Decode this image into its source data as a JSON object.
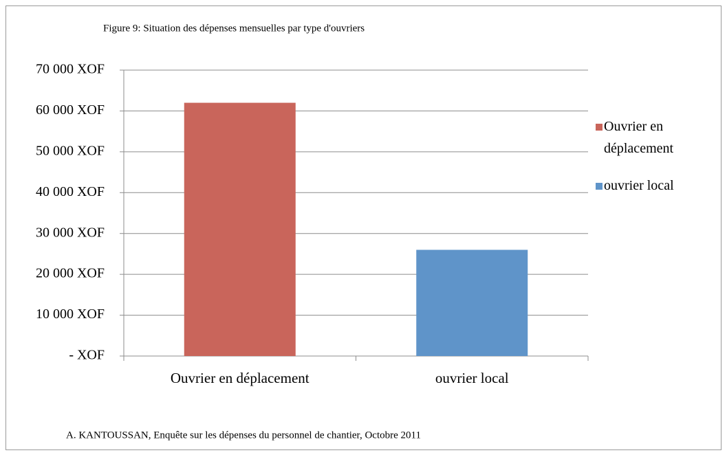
{
  "chart_data": {
    "type": "bar",
    "title": "Figure 9: Situation des dépenses mensuelles par type d'ouvriers",
    "categories": [
      "Ouvrier en déplacement",
      "ouvrier local"
    ],
    "values": [
      62000,
      26000
    ],
    "colors": [
      "#c9655b",
      "#5f94c9"
    ],
    "ylim": [
      0,
      70000
    ],
    "yticks": [
      {
        "value": 0,
        "label": "- XOF"
      },
      {
        "value": 10000,
        "label": "10 000 XOF"
      },
      {
        "value": 20000,
        "label": "20 000 XOF"
      },
      {
        "value": 30000,
        "label": "30 000 XOF"
      },
      {
        "value": 40000,
        "label": "40 000 XOF"
      },
      {
        "value": 50000,
        "label": "50 000 XOF"
      },
      {
        "value": 60000,
        "label": "60 000 XOF"
      },
      {
        "value": 70000,
        "label": "70 000 XOF"
      }
    ],
    "grid": true,
    "legend": "right",
    "source": "A. KANTOUSSAN, Enquête sur les dépenses du personnel de chantier, Octobre 2011"
  }
}
